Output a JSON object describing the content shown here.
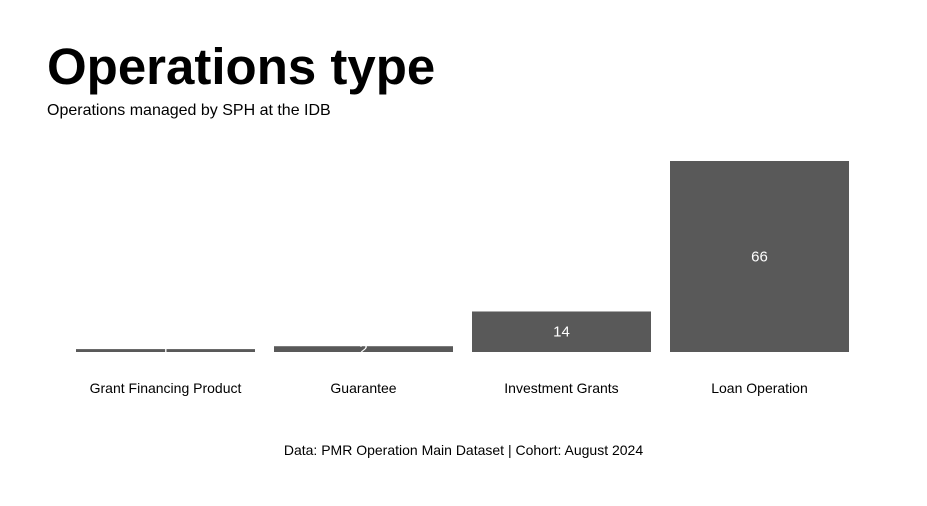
{
  "chart_data": {
    "type": "bar",
    "title": "Operations type",
    "subtitle": "Operations managed by SPH at the IDB",
    "caption": "Data: PMR Operation Main Dataset | Cohort: August 2024",
    "categories": [
      "Grant Financing Product",
      "Guarantee",
      "Investment Grants",
      "Loan Operation"
    ],
    "values": [
      1,
      2,
      14,
      66
    ],
    "data_labels": [
      "1",
      "2",
      "14",
      "66"
    ],
    "xlabel": "",
    "ylabel": "",
    "ylim": [
      0,
      66
    ],
    "grid": false,
    "legend": "none",
    "bar_color": "#595959",
    "label_color": "#ffffff"
  }
}
